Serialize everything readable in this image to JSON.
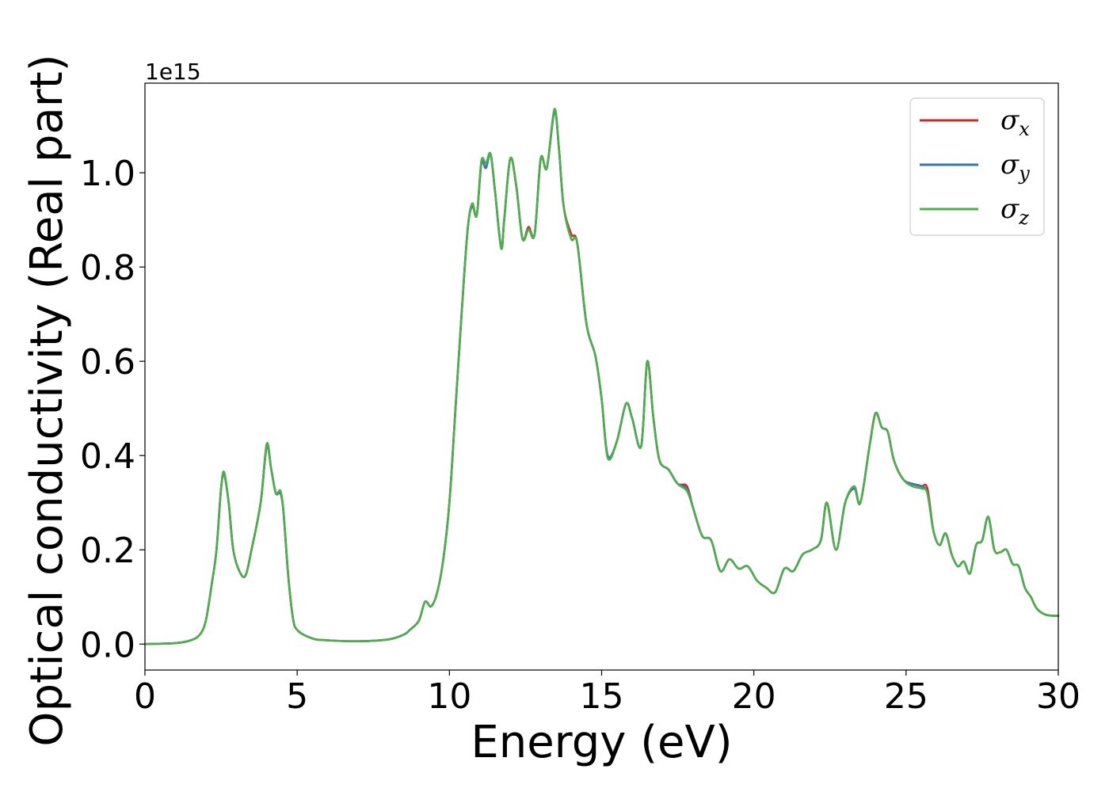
{
  "chart_data": {
    "type": "line",
    "title": "",
    "xlabel": "Energy (eV)",
    "ylabel": "Optical conductivity (Real part)",
    "y_offset_text": "1e15",
    "y_scale_factor": 1000000000000000.0,
    "xlim": [
      0,
      30
    ],
    "ylim": [
      -0.055,
      1.19
    ],
    "x_ticks": [
      0,
      5,
      10,
      15,
      20,
      25,
      30
    ],
    "x_tick_labels": [
      "0",
      "5",
      "10",
      "15",
      "20",
      "25",
      "30"
    ],
    "y_ticks": [
      0.0,
      0.2,
      0.4,
      0.6,
      0.8,
      1.0
    ],
    "y_tick_labels": [
      "0.0",
      "0.2",
      "0.4",
      "0.6",
      "0.8",
      "1.0"
    ],
    "grid": false,
    "legend_position": "top-right",
    "series": [
      {
        "name": "σx",
        "symbol": "σ",
        "subscript": "x",
        "color": "#d62728",
        "x": [
          0,
          1,
          1.5,
          1.8,
          2.0,
          2.2,
          2.35,
          2.5,
          2.6,
          2.75,
          2.9,
          3.1,
          3.3,
          3.5,
          3.8,
          4.0,
          4.15,
          4.3,
          4.45,
          4.55,
          4.7,
          4.85,
          5.0,
          5.5,
          6.0,
          7.0,
          8.0,
          8.5,
          8.7,
          9.0,
          9.2,
          9.4,
          9.6,
          9.8,
          10.0,
          10.2,
          10.4,
          10.6,
          10.75,
          10.9,
          11.05,
          11.2,
          11.35,
          11.5,
          11.7,
          11.8,
          12.0,
          12.2,
          12.4,
          12.6,
          12.8,
          13.0,
          13.2,
          13.45,
          13.6,
          13.75,
          14.0,
          14.2,
          14.5,
          14.8,
          15.0,
          15.2,
          15.5,
          15.8,
          16.0,
          16.3,
          16.5,
          16.7,
          16.9,
          17.2,
          17.5,
          17.8,
          18.0,
          18.3,
          18.6,
          18.9,
          19.2,
          19.5,
          19.8,
          20.1,
          20.4,
          20.7,
          21.0,
          21.3,
          21.6,
          21.9,
          22.2,
          22.4,
          22.7,
          23.0,
          23.3,
          23.5,
          23.8,
          24.0,
          24.2,
          24.4,
          24.6,
          24.9,
          25.2,
          25.5,
          25.7,
          25.9,
          26.1,
          26.3,
          26.5,
          26.7,
          26.9,
          27.1,
          27.3,
          27.5,
          27.7,
          27.9,
          28.1,
          28.3,
          28.5,
          28.7,
          28.9,
          29.1,
          29.3,
          29.6,
          30.0
        ],
        "y": [
          0.0,
          0.002,
          0.008,
          0.02,
          0.05,
          0.13,
          0.2,
          0.33,
          0.36,
          0.3,
          0.2,
          0.155,
          0.145,
          0.2,
          0.3,
          0.42,
          0.37,
          0.32,
          0.32,
          0.28,
          0.15,
          0.06,
          0.03,
          0.012,
          0.008,
          0.006,
          0.01,
          0.02,
          0.03,
          0.05,
          0.09,
          0.08,
          0.11,
          0.18,
          0.3,
          0.5,
          0.7,
          0.88,
          0.93,
          0.91,
          1.02,
          1.01,
          1.04,
          0.96,
          0.84,
          0.9,
          1.03,
          0.97,
          0.86,
          0.885,
          0.87,
          1.03,
          1.01,
          1.13,
          1.05,
          0.93,
          0.87,
          0.85,
          0.68,
          0.61,
          0.52,
          0.4,
          0.43,
          0.51,
          0.48,
          0.42,
          0.6,
          0.48,
          0.39,
          0.37,
          0.34,
          0.335,
          0.29,
          0.23,
          0.22,
          0.155,
          0.18,
          0.16,
          0.165,
          0.135,
          0.12,
          0.11,
          0.16,
          0.155,
          0.19,
          0.2,
          0.22,
          0.3,
          0.2,
          0.3,
          0.33,
          0.3,
          0.42,
          0.49,
          0.46,
          0.45,
          0.39,
          0.35,
          0.34,
          0.335,
          0.33,
          0.24,
          0.21,
          0.235,
          0.19,
          0.165,
          0.175,
          0.15,
          0.21,
          0.22,
          0.27,
          0.2,
          0.195,
          0.2,
          0.17,
          0.165,
          0.12,
          0.1,
          0.075,
          0.062,
          0.06
        ]
      },
      {
        "name": "σy",
        "symbol": "σ",
        "subscript": "y",
        "color": "#3a75b0",
        "x": [
          0,
          1,
          1.5,
          1.8,
          2.0,
          2.2,
          2.35,
          2.5,
          2.6,
          2.75,
          2.9,
          3.1,
          3.3,
          3.5,
          3.8,
          4.0,
          4.15,
          4.3,
          4.45,
          4.55,
          4.7,
          4.85,
          5.0,
          5.5,
          6.0,
          7.0,
          8.0,
          8.5,
          8.7,
          9.0,
          9.2,
          9.4,
          9.6,
          9.8,
          10.0,
          10.2,
          10.4,
          10.6,
          10.75,
          10.9,
          11.05,
          11.2,
          11.35,
          11.5,
          11.7,
          11.8,
          12.0,
          12.2,
          12.4,
          12.6,
          12.8,
          13.0,
          13.2,
          13.45,
          13.6,
          13.75,
          14.0,
          14.2,
          14.5,
          14.8,
          15.0,
          15.2,
          15.5,
          15.8,
          16.0,
          16.3,
          16.5,
          16.7,
          16.9,
          17.2,
          17.5,
          17.8,
          18.0,
          18.3,
          18.6,
          18.9,
          19.2,
          19.5,
          19.8,
          20.1,
          20.4,
          20.7,
          21.0,
          21.3,
          21.6,
          21.9,
          22.2,
          22.4,
          22.7,
          23.0,
          23.3,
          23.5,
          23.8,
          24.0,
          24.2,
          24.4,
          24.6,
          24.9,
          25.2,
          25.5,
          25.7,
          25.9,
          26.1,
          26.3,
          26.5,
          26.7,
          26.9,
          27.1,
          27.3,
          27.5,
          27.7,
          27.9,
          28.1,
          28.3,
          28.5,
          28.7,
          28.9,
          29.1,
          29.3,
          29.6,
          30.0
        ],
        "y": [
          0.0,
          0.002,
          0.008,
          0.02,
          0.05,
          0.13,
          0.2,
          0.33,
          0.36,
          0.3,
          0.2,
          0.155,
          0.145,
          0.2,
          0.3,
          0.42,
          0.37,
          0.32,
          0.32,
          0.28,
          0.15,
          0.06,
          0.03,
          0.012,
          0.008,
          0.006,
          0.01,
          0.02,
          0.03,
          0.05,
          0.09,
          0.08,
          0.11,
          0.18,
          0.3,
          0.5,
          0.7,
          0.88,
          0.93,
          0.91,
          1.02,
          1.01,
          1.04,
          0.96,
          0.84,
          0.9,
          1.03,
          0.97,
          0.86,
          0.88,
          0.87,
          1.03,
          1.01,
          1.13,
          1.05,
          0.93,
          0.86,
          0.85,
          0.68,
          0.61,
          0.52,
          0.4,
          0.43,
          0.51,
          0.48,
          0.42,
          0.6,
          0.48,
          0.39,
          0.37,
          0.34,
          0.33,
          0.29,
          0.23,
          0.22,
          0.155,
          0.18,
          0.16,
          0.165,
          0.135,
          0.12,
          0.11,
          0.16,
          0.155,
          0.19,
          0.2,
          0.22,
          0.3,
          0.2,
          0.3,
          0.33,
          0.3,
          0.42,
          0.49,
          0.46,
          0.45,
          0.39,
          0.35,
          0.34,
          0.335,
          0.32,
          0.24,
          0.21,
          0.235,
          0.19,
          0.165,
          0.175,
          0.15,
          0.21,
          0.22,
          0.27,
          0.2,
          0.195,
          0.2,
          0.17,
          0.165,
          0.12,
          0.1,
          0.075,
          0.062,
          0.06
        ]
      },
      {
        "name": "σz",
        "symbol": "σ",
        "subscript": "z",
        "color": "#4daf4a",
        "x": [
          0,
          1,
          1.5,
          1.8,
          2.0,
          2.2,
          2.35,
          2.5,
          2.6,
          2.75,
          2.9,
          3.1,
          3.3,
          3.5,
          3.8,
          4.0,
          4.15,
          4.3,
          4.45,
          4.55,
          4.7,
          4.85,
          5.0,
          5.5,
          6.0,
          7.0,
          8.0,
          8.5,
          8.7,
          9.0,
          9.2,
          9.4,
          9.6,
          9.8,
          10.0,
          10.2,
          10.4,
          10.6,
          10.75,
          10.9,
          11.05,
          11.2,
          11.35,
          11.5,
          11.7,
          11.8,
          12.0,
          12.2,
          12.4,
          12.6,
          12.8,
          13.0,
          13.2,
          13.45,
          13.6,
          13.75,
          14.0,
          14.2,
          14.5,
          14.8,
          15.0,
          15.2,
          15.5,
          15.8,
          16.0,
          16.3,
          16.5,
          16.7,
          16.9,
          17.2,
          17.5,
          17.8,
          18.0,
          18.3,
          18.6,
          18.9,
          19.2,
          19.5,
          19.8,
          20.1,
          20.4,
          20.7,
          21.0,
          21.3,
          21.6,
          21.9,
          22.2,
          22.4,
          22.7,
          23.0,
          23.3,
          23.5,
          23.8,
          24.0,
          24.2,
          24.4,
          24.6,
          24.9,
          25.2,
          25.5,
          25.7,
          25.9,
          26.1,
          26.3,
          26.5,
          26.7,
          26.9,
          27.1,
          27.3,
          27.5,
          27.7,
          27.9,
          28.1,
          28.3,
          28.5,
          28.7,
          28.9,
          29.1,
          29.3,
          29.6,
          30.0
        ],
        "y": [
          0.0,
          0.002,
          0.008,
          0.02,
          0.05,
          0.13,
          0.2,
          0.33,
          0.365,
          0.3,
          0.2,
          0.155,
          0.145,
          0.2,
          0.3,
          0.425,
          0.37,
          0.32,
          0.325,
          0.28,
          0.15,
          0.06,
          0.03,
          0.012,
          0.008,
          0.006,
          0.01,
          0.02,
          0.03,
          0.05,
          0.09,
          0.08,
          0.11,
          0.18,
          0.3,
          0.5,
          0.7,
          0.88,
          0.935,
          0.91,
          1.025,
          1.02,
          1.04,
          0.96,
          0.84,
          0.9,
          1.03,
          0.97,
          0.86,
          0.88,
          0.87,
          1.03,
          1.01,
          1.135,
          1.05,
          0.93,
          0.86,
          0.85,
          0.68,
          0.61,
          0.52,
          0.395,
          0.43,
          0.51,
          0.48,
          0.42,
          0.6,
          0.48,
          0.39,
          0.37,
          0.34,
          0.325,
          0.29,
          0.23,
          0.22,
          0.155,
          0.18,
          0.16,
          0.165,
          0.135,
          0.12,
          0.11,
          0.16,
          0.155,
          0.19,
          0.2,
          0.22,
          0.3,
          0.2,
          0.3,
          0.335,
          0.3,
          0.42,
          0.49,
          0.46,
          0.45,
          0.39,
          0.35,
          0.335,
          0.33,
          0.32,
          0.24,
          0.21,
          0.235,
          0.19,
          0.165,
          0.175,
          0.15,
          0.21,
          0.22,
          0.27,
          0.2,
          0.195,
          0.2,
          0.17,
          0.165,
          0.12,
          0.1,
          0.075,
          0.062,
          0.06
        ]
      }
    ]
  }
}
